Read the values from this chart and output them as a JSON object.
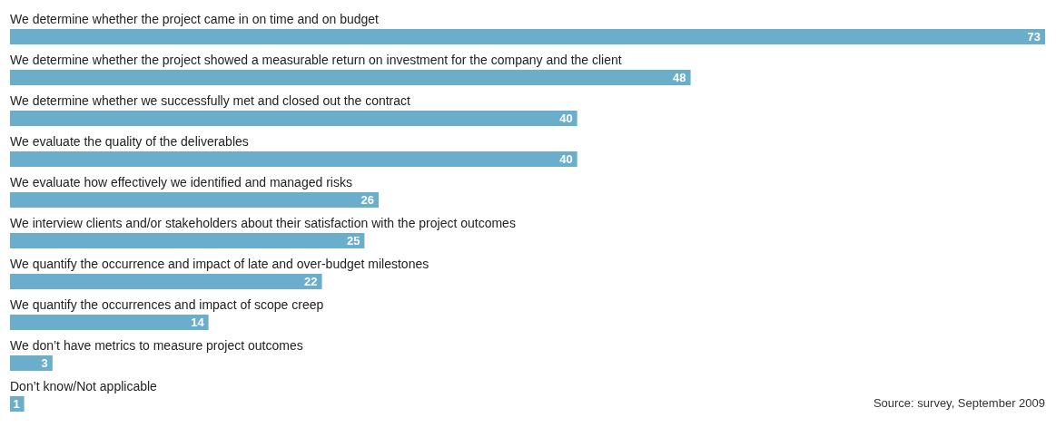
{
  "chart_data": {
    "type": "bar",
    "orientation": "horizontal",
    "categories": [
      "We determine whether the project came in on time and on budget",
      "We determine whether the project showed a measurable return on investment for the company and the client",
      "We determine whether we successfully met and closed out the contract",
      "We evaluate the quality of the deliverables",
      "We evaluate how effectively we identified and managed risks",
      "We interview clients and/or stakeholders about their satisfaction with the project outcomes",
      "We quantify the occurrence and impact of late and over-budget milestones",
      "We quantify the occurrences and impact of scope creep",
      "We don’t have metrics to measure project outcomes",
      "Don’t know/Not applicable"
    ],
    "values": [
      73,
      48,
      40,
      40,
      26,
      25,
      22,
      14,
      3,
      1
    ],
    "color": "#6aaecb",
    "data_labels": true,
    "annotations": [
      "Source: survey, September 2009"
    ]
  }
}
